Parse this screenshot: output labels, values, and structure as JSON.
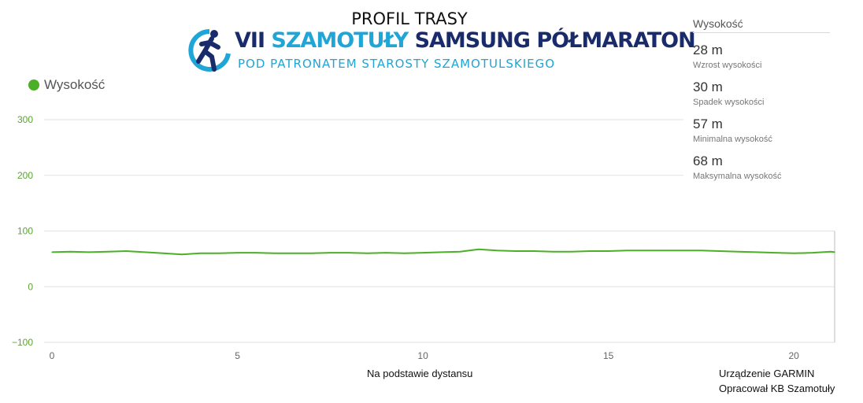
{
  "header": {
    "title": "PROFIL TRASY",
    "logo_line1_roman": "VII",
    "logo_line1_town": "SZAMOTUŁY",
    "logo_line1_event": "SAMSUNG PÓŁMARATON",
    "logo_line2": "POD PATRONATEM  STAROSTY SZAMOTULSKIEGO"
  },
  "legend": {
    "label": "Wysokość",
    "color": "#4caf28"
  },
  "stats": {
    "header": "Wysokość",
    "items": [
      {
        "value": "28 m",
        "label": "Wzrost wysokości"
      },
      {
        "value": "30 m",
        "label": "Spadek wysokości"
      },
      {
        "value": "57 m",
        "label": "Minimalna wysokość"
      },
      {
        "value": "68 m",
        "label": "Maksymalna wysokość"
      }
    ]
  },
  "footer": {
    "device": "Urządzenie GARMIN",
    "prepared_by": "Opracował KB Szamotuły"
  },
  "colors": {
    "series": "#4caf28",
    "y_ticks": "#5ba332",
    "x_ticks": "#666666",
    "grid": "#e2e2e2",
    "logo_dark": "#1a2b6b",
    "logo_light": "#1fa5d6"
  },
  "chart_data": {
    "type": "line",
    "xlabel": "Na podstawie dystansu",
    "ylabel": "",
    "xlim": [
      0,
      21.1
    ],
    "ylim": [
      -100,
      300
    ],
    "x_ticks": [
      0,
      5,
      10,
      15,
      20
    ],
    "y_ticks": [
      -100,
      0,
      100,
      200,
      300
    ],
    "y_tick_labels": [
      "−100",
      "0",
      "100",
      "200",
      "300"
    ],
    "grid": true,
    "series": [
      {
        "name": "Wysokość",
        "x": [
          0,
          0.5,
          1,
          1.5,
          2,
          2.5,
          3,
          3.5,
          4,
          4.5,
          5,
          5.5,
          6,
          6.5,
          7,
          7.5,
          8,
          8.5,
          9,
          9.5,
          10,
          10.5,
          11,
          11.5,
          12,
          12.5,
          13,
          13.5,
          14,
          14.5,
          15,
          15.5,
          16,
          16.5,
          17,
          17.5,
          18,
          18.5,
          19,
          19.5,
          20,
          20.5,
          21,
          21.1
        ],
        "y": [
          62,
          63,
          62,
          63,
          64,
          62,
          60,
          58,
          60,
          60,
          61,
          61,
          60,
          60,
          60,
          61,
          61,
          60,
          61,
          60,
          61,
          62,
          63,
          67,
          65,
          64,
          64,
          63,
          63,
          64,
          64,
          65,
          65,
          65,
          65,
          65,
          64,
          63,
          62,
          61,
          60,
          61,
          63,
          62
        ]
      }
    ]
  }
}
